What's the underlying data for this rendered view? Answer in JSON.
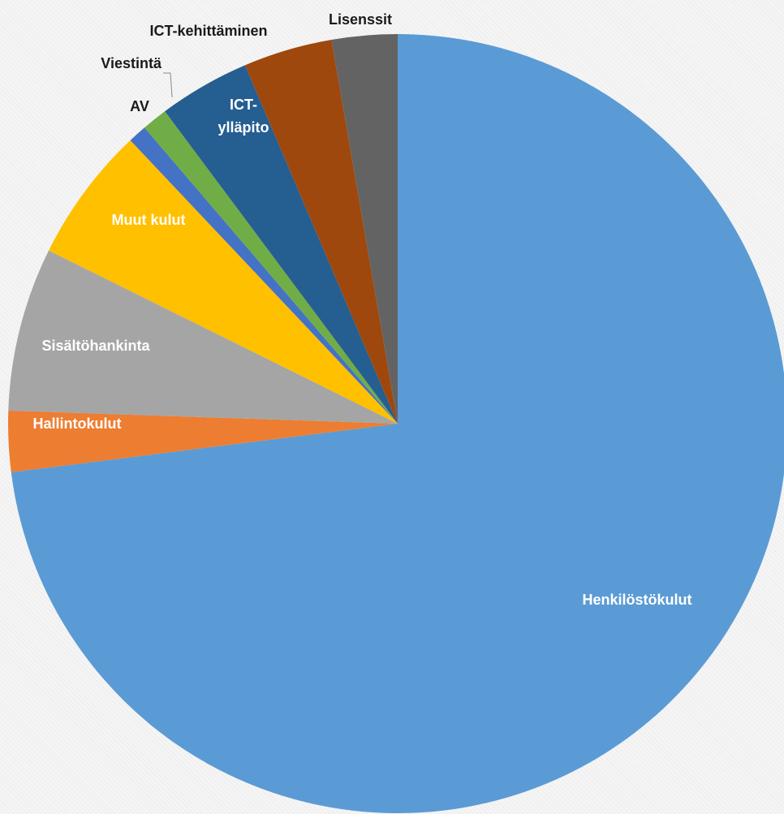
{
  "chart_data": {
    "type": "pie",
    "title": "",
    "start": "top",
    "direction": "clockwise",
    "slices": [
      {
        "label": "Henkilöstökulut",
        "value": 75.2,
        "color": "#5b9bd5"
      },
      {
        "label": "Hallintokulut",
        "value": 2.6,
        "color": "#ed7d31"
      },
      {
        "label": "Sisältöhankinta",
        "value": 7.0,
        "color": "#a5a5a5"
      },
      {
        "label": "Muut kulut",
        "value": 5.8,
        "color": "#ffc000"
      },
      {
        "label": "AV",
        "value": 0.8,
        "color": "#4472c4"
      },
      {
        "label": "Viestintä",
        "value": 1.1,
        "color": "#70ad47"
      },
      {
        "label": "ICT-ylläpito",
        "value": 3.9,
        "color": "#255e91"
      },
      {
        "label": "ICT-kehittäminen",
        "value": 3.8,
        "color": "#9e480e"
      },
      {
        "label": "Lisenssit",
        "value": 2.8,
        "color": "#636363"
      }
    ]
  }
}
